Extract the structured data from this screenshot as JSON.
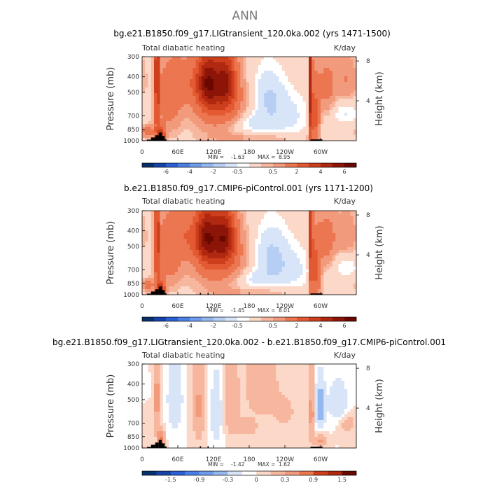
{
  "figure_title": "ANN",
  "chart_data": [
    {
      "type": "heatmap",
      "title": "bg.e21.B1850.f09_g17.LIGtransient_120.0ka.002 (yrs 1471-1500)",
      "left_label": "Total diabatic heating",
      "units": "K/day",
      "xlabel": "",
      "ylabel": "Pressure (mb)",
      "right_ylabel": "Height (km)",
      "x_ticks": [
        {
          "lon": 0,
          "label": "0"
        },
        {
          "lon": 60,
          "label": "60E"
        },
        {
          "lon": 120,
          "label": "120E"
        },
        {
          "lon": 180,
          "label": "180"
        },
        {
          "lon": 240,
          "label": "120W"
        },
        {
          "lon": 300,
          "label": "60W"
        }
      ],
      "y_ticks": [
        {
          "p": 300,
          "label": "300"
        },
        {
          "p": 400,
          "label": "400"
        },
        {
          "p": 500,
          "label": "500"
        },
        {
          "p": 700,
          "label": "700"
        },
        {
          "p": 850,
          "label": "850"
        },
        {
          "p": 1000,
          "label": "1000"
        }
      ],
      "right_ticks": [
        {
          "km": 8,
          "label": "8"
        },
        {
          "km": 4,
          "label": "4"
        }
      ],
      "xlim": [
        0,
        360
      ],
      "ylim": [
        1000,
        300
      ],
      "stats": {
        "min_label": "MIN =",
        "min": "-1.63",
        "max_label": "MAX =",
        "max": "8.95"
      },
      "levels": [
        -8,
        -6,
        -5,
        -4,
        -3,
        -2,
        -1,
        -0.5,
        -0.25,
        0.25,
        0.5,
        1,
        2,
        3,
        4,
        5,
        6,
        8
      ],
      "level_labels": [
        "-6",
        "-4",
        "-2",
        "-0.5",
        "0.5",
        "2",
        "4",
        "6"
      ],
      "label_level_index": [
        1,
        3,
        5,
        7,
        10,
        12,
        14,
        16
      ],
      "features": [
        {
          "lon": 25,
          "lon_width": 4,
          "p": 300,
          "p_width": 650,
          "amp": 4.0
        },
        {
          "lon": 32,
          "lon_width": 6,
          "p": 930,
          "p_width": 110,
          "amp": 4.5
        },
        {
          "lon": 45,
          "lon_width": 22,
          "p": 550,
          "p_width": 300,
          "amp": 1.5
        },
        {
          "lon": 10,
          "lon_width": 10,
          "p": 880,
          "p_width": 80,
          "amp": 1.8
        },
        {
          "lon": 110,
          "lon_width": 18,
          "p": 430,
          "p_width": 180,
          "amp": 4.8
        },
        {
          "lon": 140,
          "lon_width": 18,
          "p": 430,
          "p_width": 180,
          "amp": 4.2
        },
        {
          "lon": 130,
          "lon_width": 45,
          "p": 600,
          "p_width": 280,
          "amp": 1.8
        },
        {
          "lon": 75,
          "lon_width": 25,
          "p": 420,
          "p_width": 150,
          "amp": 1.2
        },
        {
          "lon": 210,
          "lon_width": 28,
          "p": 530,
          "p_width": 200,
          "amp": -1.0
        },
        {
          "lon": 180,
          "lon_width": 40,
          "p": 780,
          "p_width": 110,
          "amp": -0.8
        },
        {
          "lon": 245,
          "lon_width": 40,
          "p": 700,
          "p_width": 220,
          "amp": -0.6
        },
        {
          "lon": 283,
          "lon_width": 3,
          "p": 300,
          "p_width": 650,
          "amp": 4.5
        },
        {
          "lon": 290,
          "lon_width": 8,
          "p": 720,
          "p_width": 300,
          "amp": 2.5
        },
        {
          "lon": 310,
          "lon_width": 18,
          "p": 460,
          "p_width": 220,
          "amp": 1.3
        },
        {
          "lon": 345,
          "lon_width": 18,
          "p": 420,
          "p_width": 150,
          "amp": 1.0
        },
        {
          "lon": 340,
          "lon_width": 25,
          "p": 660,
          "p_width": 120,
          "amp": -0.6
        },
        {
          "lon": 200,
          "lon_width": 90,
          "p": 960,
          "p_width": 60,
          "amp": 0.5
        }
      ],
      "topography": [
        {
          "lon0": 8,
          "lon1": 15,
          "p_top": 985
        },
        {
          "lon0": 15,
          "lon1": 22,
          "p_top": 955
        },
        {
          "lon0": 22,
          "lon1": 28,
          "p_top": 925
        },
        {
          "lon0": 28,
          "lon1": 33,
          "p_top": 890
        },
        {
          "lon0": 33,
          "lon1": 38,
          "p_top": 935
        },
        {
          "lon0": 38,
          "lon1": 41,
          "p_top": 978
        },
        {
          "lon0": 97,
          "lon1": 99,
          "p_top": 975
        },
        {
          "lon0": 110,
          "lon1": 112,
          "p_top": 975
        },
        {
          "lon0": 283,
          "lon1": 303,
          "p_top": 982
        }
      ]
    },
    {
      "type": "heatmap",
      "title": "b.e21.B1850.f09_g17.CMIP6-piControl.001 (yrs 1171-1200)",
      "left_label": "Total diabatic heating",
      "units": "K/day",
      "xlabel": "",
      "ylabel": "Pressure (mb)",
      "right_ylabel": "Height (km)",
      "x_ticks": [
        {
          "lon": 0,
          "label": "0"
        },
        {
          "lon": 60,
          "label": "60E"
        },
        {
          "lon": 120,
          "label": "120E"
        },
        {
          "lon": 180,
          "label": "180"
        },
        {
          "lon": 240,
          "label": "120W"
        },
        {
          "lon": 300,
          "label": "60W"
        }
      ],
      "y_ticks": [
        {
          "p": 300,
          "label": "300"
        },
        {
          "p": 400,
          "label": "400"
        },
        {
          "p": 500,
          "label": "500"
        },
        {
          "p": 700,
          "label": "700"
        },
        {
          "p": 850,
          "label": "850"
        },
        {
          "p": 1000,
          "label": "1000"
        }
      ],
      "right_ticks": [
        {
          "km": 8,
          "label": "8"
        },
        {
          "km": 4,
          "label": "4"
        }
      ],
      "xlim": [
        0,
        360
      ],
      "ylim": [
        1000,
        300
      ],
      "stats": {
        "min_label": "MIN =",
        "min": "-1.45",
        "max_label": "MAX =",
        "max": "8.01"
      },
      "levels": [
        -8,
        -6,
        -5,
        -4,
        -3,
        -2,
        -1,
        -0.5,
        -0.25,
        0.25,
        0.5,
        1,
        2,
        3,
        4,
        5,
        6,
        8
      ],
      "level_labels": [
        "-6",
        "-4",
        "-2",
        "-0.5",
        "0.5",
        "2",
        "4",
        "6"
      ],
      "label_level_index": [
        1,
        3,
        5,
        7,
        10,
        12,
        14,
        16
      ],
      "features": [
        {
          "lon": 25,
          "lon_width": 4,
          "p": 300,
          "p_width": 650,
          "amp": 3.6
        },
        {
          "lon": 32,
          "lon_width": 6,
          "p": 930,
          "p_width": 110,
          "amp": 4.3
        },
        {
          "lon": 45,
          "lon_width": 22,
          "p": 550,
          "p_width": 300,
          "amp": 1.6
        },
        {
          "lon": 10,
          "lon_width": 10,
          "p": 880,
          "p_width": 80,
          "amp": 1.5
        },
        {
          "lon": 108,
          "lon_width": 18,
          "p": 430,
          "p_width": 180,
          "amp": 4.6
        },
        {
          "lon": 138,
          "lon_width": 18,
          "p": 430,
          "p_width": 180,
          "amp": 4.4
        },
        {
          "lon": 130,
          "lon_width": 45,
          "p": 600,
          "p_width": 280,
          "amp": 1.9
        },
        {
          "lon": 75,
          "lon_width": 25,
          "p": 420,
          "p_width": 150,
          "amp": 1.4
        },
        {
          "lon": 215,
          "lon_width": 30,
          "p": 560,
          "p_width": 220,
          "amp": -1.0
        },
        {
          "lon": 185,
          "lon_width": 40,
          "p": 800,
          "p_width": 110,
          "amp": -0.7
        },
        {
          "lon": 250,
          "lon_width": 40,
          "p": 700,
          "p_width": 220,
          "amp": -0.6
        },
        {
          "lon": 284,
          "lon_width": 3,
          "p": 300,
          "p_width": 650,
          "amp": 4.2
        },
        {
          "lon": 292,
          "lon_width": 8,
          "p": 720,
          "p_width": 300,
          "amp": 2.4
        },
        {
          "lon": 310,
          "lon_width": 18,
          "p": 460,
          "p_width": 220,
          "amp": 1.4
        },
        {
          "lon": 345,
          "lon_width": 18,
          "p": 420,
          "p_width": 150,
          "amp": 0.9
        },
        {
          "lon": 340,
          "lon_width": 25,
          "p": 660,
          "p_width": 120,
          "amp": -0.5
        },
        {
          "lon": 200,
          "lon_width": 90,
          "p": 960,
          "p_width": 60,
          "amp": 0.5
        }
      ],
      "topography": [
        {
          "lon0": 8,
          "lon1": 15,
          "p_top": 985
        },
        {
          "lon0": 15,
          "lon1": 22,
          "p_top": 955
        },
        {
          "lon0": 22,
          "lon1": 28,
          "p_top": 925
        },
        {
          "lon0": 28,
          "lon1": 33,
          "p_top": 890
        },
        {
          "lon0": 33,
          "lon1": 38,
          "p_top": 935
        },
        {
          "lon0": 38,
          "lon1": 41,
          "p_top": 978
        },
        {
          "lon0": 97,
          "lon1": 99,
          "p_top": 975
        },
        {
          "lon0": 110,
          "lon1": 112,
          "p_top": 975
        },
        {
          "lon0": 283,
          "lon1": 303,
          "p_top": 982
        }
      ]
    },
    {
      "type": "heatmap",
      "title": "bg.e21.B1850.f09_g17.LIGtransient_120.0ka.002 - b.e21.B1850.f09_g17.CMIP6-piControl.001",
      "left_label": "Total diabatic heating",
      "units": "K/day",
      "xlabel": "",
      "ylabel": "Pressure (mb)",
      "right_ylabel": "Height (km)",
      "x_ticks": [
        {
          "lon": 0,
          "label": "0"
        },
        {
          "lon": 60,
          "label": "60E"
        },
        {
          "lon": 120,
          "label": "120E"
        },
        {
          "lon": 180,
          "label": "180"
        },
        {
          "lon": 240,
          "label": "120W"
        },
        {
          "lon": 300,
          "label": "60W"
        }
      ],
      "y_ticks": [
        {
          "p": 300,
          "label": "300"
        },
        {
          "p": 400,
          "label": "400"
        },
        {
          "p": 500,
          "label": "500"
        },
        {
          "p": 700,
          "label": "700"
        },
        {
          "p": 850,
          "label": "850"
        },
        {
          "p": 1000,
          "label": "1000"
        }
      ],
      "right_ticks": [
        {
          "km": 8,
          "label": "8"
        },
        {
          "km": 4,
          "label": "4"
        }
      ],
      "xlim": [
        0,
        360
      ],
      "ylim": [
        1000,
        300
      ],
      "stats": {
        "min_label": "MIN =",
        "min": "-1.42",
        "max_label": "MAX =",
        "max": "1.62"
      },
      "levels": [
        -2,
        -1.5,
        -1.2,
        -0.9,
        -0.6,
        -0.3,
        -0.1,
        0,
        0.1,
        0.3,
        0.6,
        0.9,
        1.2,
        1.5,
        2
      ],
      "level_labels": [
        "-1.5",
        "-0.9",
        "-0.3",
        "0",
        "0.3",
        "0.9",
        "1.5"
      ],
      "label_level_index": [
        1,
        3,
        5,
        7,
        9,
        11,
        13
      ],
      "features": [
        {
          "lon": 25,
          "lon_width": 4,
          "p": 500,
          "p_width": 300,
          "amp": 0.5
        },
        {
          "lon": 32,
          "lon_width": 5,
          "p": 900,
          "p_width": 120,
          "amp": 0.8
        },
        {
          "lon": 55,
          "lon_width": 12,
          "p": 500,
          "p_width": 250,
          "amp": -0.3
        },
        {
          "lon": 95,
          "lon_width": 10,
          "p": 550,
          "p_width": 300,
          "amp": 0.35
        },
        {
          "lon": 125,
          "lon_width": 10,
          "p": 600,
          "p_width": 300,
          "amp": -0.25
        },
        {
          "lon": 150,
          "lon_width": 12,
          "p": 500,
          "p_width": 300,
          "amp": 0.25
        },
        {
          "lon": 200,
          "lon_width": 25,
          "p": 400,
          "p_width": 200,
          "amp": 0.3
        },
        {
          "lon": 175,
          "lon_width": 20,
          "p": 750,
          "p_width": 100,
          "amp": 0.2
        },
        {
          "lon": 240,
          "lon_width": 20,
          "p": 600,
          "p_width": 150,
          "amp": 0.15
        },
        {
          "lon": 285,
          "lon_width": 4,
          "p": 600,
          "p_width": 300,
          "amp": 0.5
        },
        {
          "lon": 300,
          "lon_width": 8,
          "p": 550,
          "p_width": 200,
          "amp": -0.45
        },
        {
          "lon": 300,
          "lon_width": 8,
          "p": 900,
          "p_width": 100,
          "amp": 0.4
        },
        {
          "lon": 330,
          "lon_width": 15,
          "p": 520,
          "p_width": 150,
          "amp": -0.3
        },
        {
          "lon": 345,
          "lon_width": 15,
          "p": 700,
          "p_width": 100,
          "amp": 0.2
        }
      ],
      "topography": [
        {
          "lon0": 8,
          "lon1": 15,
          "p_top": 985
        },
        {
          "lon0": 15,
          "lon1": 22,
          "p_top": 955
        },
        {
          "lon0": 22,
          "lon1": 28,
          "p_top": 925
        },
        {
          "lon0": 28,
          "lon1": 33,
          "p_top": 890
        },
        {
          "lon0": 33,
          "lon1": 38,
          "p_top": 935
        },
        {
          "lon0": 38,
          "lon1": 41,
          "p_top": 978
        },
        {
          "lon0": 97,
          "lon1": 99,
          "p_top": 975
        },
        {
          "lon0": 110,
          "lon1": 112,
          "p_top": 975
        },
        {
          "lon0": 283,
          "lon1": 303,
          "p_top": 982
        }
      ]
    }
  ],
  "colors": {
    "palette_full": [
      "#08306b",
      "#1543a8",
      "#2a60d6",
      "#4a80e6",
      "#6f9ceb",
      "#93b7ef",
      "#b6cef3",
      "#d8e4f7",
      "#ffffff",
      "#fbd8c8",
      "#f7b79e",
      "#f29a7c",
      "#ec7650",
      "#e35a32",
      "#cd3f1c",
      "#b02810",
      "#8c1508",
      "#6a0800"
    ],
    "palette_diff": [
      "#08306b",
      "#1543a8",
      "#2a60d6",
      "#4a80e6",
      "#6f9ceb",
      "#93b7ef",
      "#d8e4f7",
      "#ffffff",
      "#fbd8c8",
      "#f7b79e",
      "#f29a7c",
      "#ec7650",
      "#cd3f1c",
      "#b02810",
      "#6a0800"
    ],
    "topography": "#000000",
    "frame": "#000000"
  }
}
